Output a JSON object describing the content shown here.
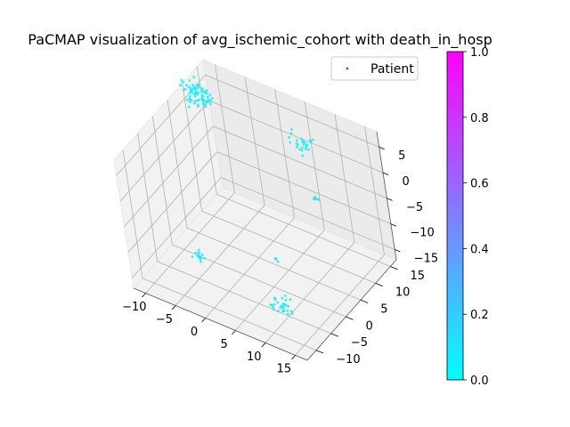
{
  "chart_data": {
    "type": "scatter",
    "projection": "3d",
    "title": "PaCMAP visualization of avg_ischemic_cohort with death_in_hosp",
    "legend": {
      "label": "Patient",
      "marker_color": "#c000ff",
      "placement": "top-right"
    },
    "xlim": [
      -12,
      17
    ],
    "ylim": [
      -13,
      17
    ],
    "zlim": [
      -17,
      8
    ],
    "xticks": [
      -10,
      -5,
      0,
      5,
      10,
      15
    ],
    "yticks": [
      -10,
      -5,
      0,
      5,
      10,
      15
    ],
    "zticks": [
      -15,
      -10,
      -5,
      0,
      5
    ],
    "grid": true,
    "colormap": "cool",
    "colorbar": {
      "range": [
        0,
        1
      ],
      "ticks": [
        "0.0",
        "0.2",
        "0.4",
        "0.6",
        "0.8",
        "1.0"
      ]
    },
    "clusters": [
      {
        "x": -11,
        "y": 12,
        "z": 5,
        "n": 70,
        "spread": 1.3,
        "value": 0.05
      },
      {
        "x": 5,
        "y": 14,
        "z": 2,
        "n": 25,
        "spread": 1.1,
        "value": 0.06
      },
      {
        "x": 15,
        "y": 0,
        "z": 5,
        "n": 6,
        "spread": 0.35,
        "value": 0.1
      },
      {
        "x": 5,
        "y": 2,
        "z": -13,
        "n": 4,
        "spread": 0.3,
        "value": 0.12
      },
      {
        "x": -5,
        "y": -4,
        "z": -13,
        "n": 14,
        "spread": 0.5,
        "value": 0.1
      },
      {
        "x": 13,
        "y": -11,
        "z": -10,
        "n": 28,
        "spread": 1.0,
        "value": 0.08
      }
    ]
  }
}
